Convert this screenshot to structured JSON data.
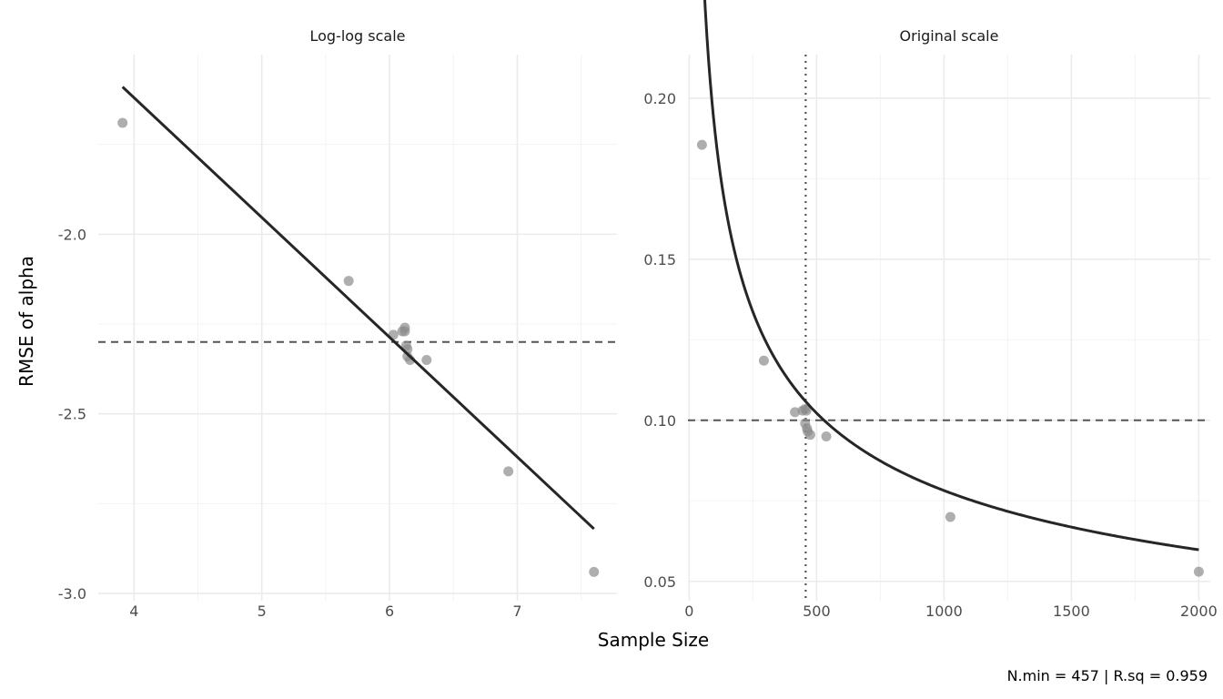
{
  "figure": {
    "ylabel": "RMSE of alpha",
    "xlabel": "Sample Size",
    "caption": "N.min = 457 | R.sq = 0.959"
  },
  "chart_data": [
    {
      "type": "scatter",
      "title": "Log-log scale",
      "xlim": [
        3.72,
        7.78
      ],
      "ylim": [
        -3.02,
        -1.5
      ],
      "x_ticks": [
        4,
        5,
        6,
        7
      ],
      "x_tick_labels": [
        "4",
        "5",
        "6",
        "7"
      ],
      "x_minor_ticks": [
        4.5,
        5.5,
        6.5,
        7.5
      ],
      "y_ticks": [
        -3.0,
        -2.5,
        -2.0
      ],
      "y_tick_labels": [
        "-3.0",
        "-2.5",
        "-2.0"
      ],
      "y_minor_ticks": [
        -2.75,
        -2.25,
        -1.75
      ],
      "grid": true,
      "point_color": "#8c8c8c",
      "line_color": "#262626",
      "reference_color": "#555555",
      "points": [
        {
          "x": 3.91,
          "y": -1.69
        },
        {
          "x": 5.68,
          "y": -2.13
        },
        {
          "x": 6.03,
          "y": -2.28
        },
        {
          "x": 6.1,
          "y": -2.27
        },
        {
          "x": 6.12,
          "y": -2.27
        },
        {
          "x": 6.12,
          "y": -2.26
        },
        {
          "x": 6.13,
          "y": -2.31
        },
        {
          "x": 6.14,
          "y": -2.32
        },
        {
          "x": 6.14,
          "y": -2.34
        },
        {
          "x": 6.16,
          "y": -2.35
        },
        {
          "x": 6.29,
          "y": -2.35
        },
        {
          "x": 6.93,
          "y": -2.66
        },
        {
          "x": 7.6,
          "y": -2.94
        }
      ],
      "fit_line": {
        "x": [
          3.91,
          7.6
        ],
        "y": [
          -1.59,
          -2.82
        ]
      },
      "hline": -2.3
    },
    {
      "type": "scatter",
      "title": "Original scale",
      "xlim": [
        -5,
        2045
      ],
      "ylim": [
        0.044,
        0.2135
      ],
      "x_ticks": [
        0,
        500,
        1000,
        1500,
        2000
      ],
      "x_tick_labels": [
        "0",
        "500",
        "1000",
        "1500",
        "2000"
      ],
      "x_minor_ticks": [
        250,
        750,
        1250,
        1750
      ],
      "y_ticks": [
        0.05,
        0.1,
        0.15,
        0.2
      ],
      "y_tick_labels": [
        "0.05",
        "0.10",
        "0.15",
        "0.20"
      ],
      "y_minor_ticks": [
        0.075,
        0.125,
        0.175
      ],
      "grid": true,
      "point_color": "#8c8c8c",
      "line_color": "#262626",
      "reference_color": "#555555",
      "points": [
        {
          "x": 50,
          "y": 0.1855
        },
        {
          "x": 293,
          "y": 0.1185
        },
        {
          "x": 415,
          "y": 0.1025
        },
        {
          "x": 445,
          "y": 0.103
        },
        {
          "x": 455,
          "y": 0.1035
        },
        {
          "x": 460,
          "y": 0.103
        },
        {
          "x": 455,
          "y": 0.099
        },
        {
          "x": 462,
          "y": 0.0975
        },
        {
          "x": 465,
          "y": 0.0965
        },
        {
          "x": 475,
          "y": 0.0955
        },
        {
          "x": 538,
          "y": 0.095
        },
        {
          "x": 1025,
          "y": 0.07
        },
        {
          "x": 2000,
          "y": 0.053
        }
      ],
      "fit_curve": {
        "type": "power",
        "a": 1.1297,
        "b": -0.3866,
        "x_from": 50,
        "x_to": 2000
      },
      "hline": 0.1,
      "vline": 457
    }
  ]
}
